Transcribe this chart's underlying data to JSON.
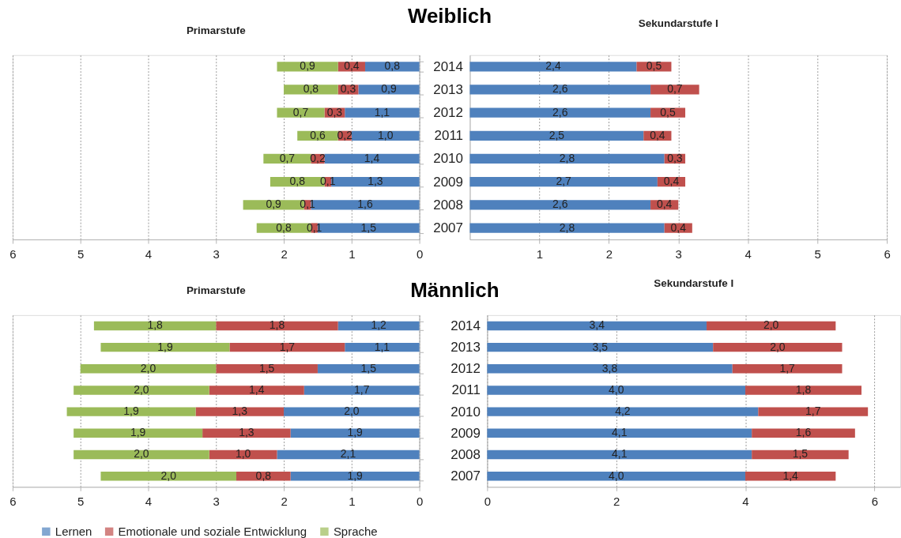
{
  "chart_data": [
    {
      "type": "bar",
      "orientation": "horizontal",
      "stacked": true,
      "title": "Primarstufe",
      "annotations": [
        "Weiblich"
      ],
      "categories": [
        "2014",
        "2013",
        "2012",
        "2011",
        "2010",
        "2009",
        "2008",
        "2007"
      ],
      "series": [
        {
          "name": "Lernen",
          "color": "#4f81bd",
          "values": [
            0.8,
            0.9,
            1.1,
            1.0,
            1.4,
            1.3,
            1.6,
            1.5
          ],
          "value_labels": [
            "0,8",
            "0,9",
            "1,1",
            "1,0",
            "1,4",
            "1,3",
            "1,6",
            "1,5"
          ]
        },
        {
          "name": "Emotionale und soziale Entwicklung",
          "color": "#c0504d",
          "values": [
            0.4,
            0.3,
            0.3,
            0.2,
            0.2,
            0.1,
            0.1,
            0.1
          ],
          "value_labels": [
            "0,4",
            "0,3",
            "0,3",
            "0,2",
            "0,2",
            "0,1",
            "0,1",
            "0,1"
          ]
        },
        {
          "name": "Sprache",
          "color": "#9bbb59",
          "values": [
            0.9,
            0.8,
            0.7,
            0.6,
            0.7,
            0.8,
            0.9,
            0.8
          ],
          "value_labels": [
            "0,9",
            "0,8",
            "0,7",
            "0,6",
            "0,7",
            "0,8",
            "0,9",
            "0,8"
          ]
        }
      ],
      "xlim": [
        6,
        0
      ],
      "xticks": [
        0,
        1,
        2,
        3,
        4,
        5,
        6
      ],
      "grid": "x",
      "tick_labels": "x",
      "legend": "bottom"
    },
    {
      "type": "bar",
      "orientation": "horizontal",
      "stacked": true,
      "title": "Sekundarstufe I",
      "categories": [
        "2014",
        "2013",
        "2012",
        "2011",
        "2010",
        "2009",
        "2008",
        "2007"
      ],
      "series": [
        {
          "name": "Lernen",
          "color": "#4f81bd",
          "values": [
            2.4,
            2.6,
            2.6,
            2.5,
            2.8,
            2.7,
            2.6,
            2.8
          ],
          "value_labels": [
            "2,4",
            "2,6",
            "2,6",
            "2,5",
            "2,8",
            "2,7",
            "2,6",
            "2,8"
          ]
        },
        {
          "name": "Emotionale und soziale Entwicklung",
          "color": "#c0504d",
          "values": [
            0.5,
            0.7,
            0.5,
            0.4,
            0.3,
            0.4,
            0.4,
            0.4
          ],
          "value_labels": [
            "0,5",
            "0,7",
            "0,5",
            "0,4",
            "0,3",
            "0,4",
            "0,4",
            "0,4"
          ]
        }
      ],
      "xlim": [
        0,
        6
      ],
      "xticks": [
        1,
        2,
        3,
        4,
        5,
        6
      ],
      "grid": "x"
    },
    {
      "type": "bar",
      "orientation": "horizontal",
      "stacked": true,
      "title": "Primarstufe",
      "annotations": [
        "Männlich"
      ],
      "categories": [
        "2014",
        "2013",
        "2012",
        "2011",
        "2010",
        "2009",
        "2008",
        "2007"
      ],
      "series": [
        {
          "name": "Lernen",
          "color": "#4f81bd",
          "values": [
            1.2,
            1.1,
            1.5,
            1.7,
            2.0,
            1.9,
            2.1,
            1.9
          ],
          "value_labels": [
            "1,2",
            "1,1",
            "1,5",
            "1,7",
            "2,0",
            "1,9",
            "2,1",
            "1,9"
          ]
        },
        {
          "name": "Emotionale und soziale Entwicklung",
          "color": "#c0504d",
          "values": [
            1.8,
            1.7,
            1.5,
            1.4,
            1.3,
            1.3,
            1.0,
            0.8
          ],
          "value_labels": [
            "1,8",
            "1,7",
            "1,5",
            "1,4",
            "1,3",
            "1,3",
            "1,0",
            "0,8"
          ]
        },
        {
          "name": "Sprache",
          "color": "#9bbb59",
          "values": [
            1.8,
            1.9,
            2.0,
            2.0,
            1.9,
            1.9,
            2.0,
            2.0
          ],
          "value_labels": [
            "1,8",
            "1,9",
            "2,0",
            "2,0",
            "1,9",
            "1,9",
            "2,0",
            "2,0"
          ]
        }
      ],
      "xlim": [
        6,
        0
      ],
      "xticks": [
        0,
        1,
        2,
        3,
        4,
        5,
        6
      ],
      "grid": "x",
      "tick_labels": "x"
    },
    {
      "type": "bar",
      "orientation": "horizontal",
      "stacked": true,
      "title": "Sekundarstufe I",
      "categories": [
        "2014",
        "2013",
        "2012",
        "2011",
        "2010",
        "2009",
        "2008",
        "2007"
      ],
      "series": [
        {
          "name": "Lernen",
          "color": "#4f81bd",
          "values": [
            3.4,
            3.5,
            3.8,
            4.0,
            4.2,
            4.1,
            4.1,
            4.0
          ],
          "value_labels": [
            "3,4",
            "3,5",
            "3,8",
            "4,0",
            "4,2",
            "4,1",
            "4,1",
            "4,0"
          ]
        },
        {
          "name": "Emotionale und soziale Entwicklung",
          "color": "#c0504d",
          "values": [
            2.0,
            2.0,
            1.7,
            1.8,
            1.7,
            1.6,
            1.5,
            1.4
          ],
          "value_labels": [
            "2,0",
            "2,0",
            "1,7",
            "1,8",
            "1,7",
            "1,6",
            "1,5",
            "1,4"
          ]
        }
      ],
      "xlim": [
        0,
        6.4
      ],
      "xticks": [
        0,
        2,
        4,
        6
      ],
      "grid": "x"
    }
  ]
}
